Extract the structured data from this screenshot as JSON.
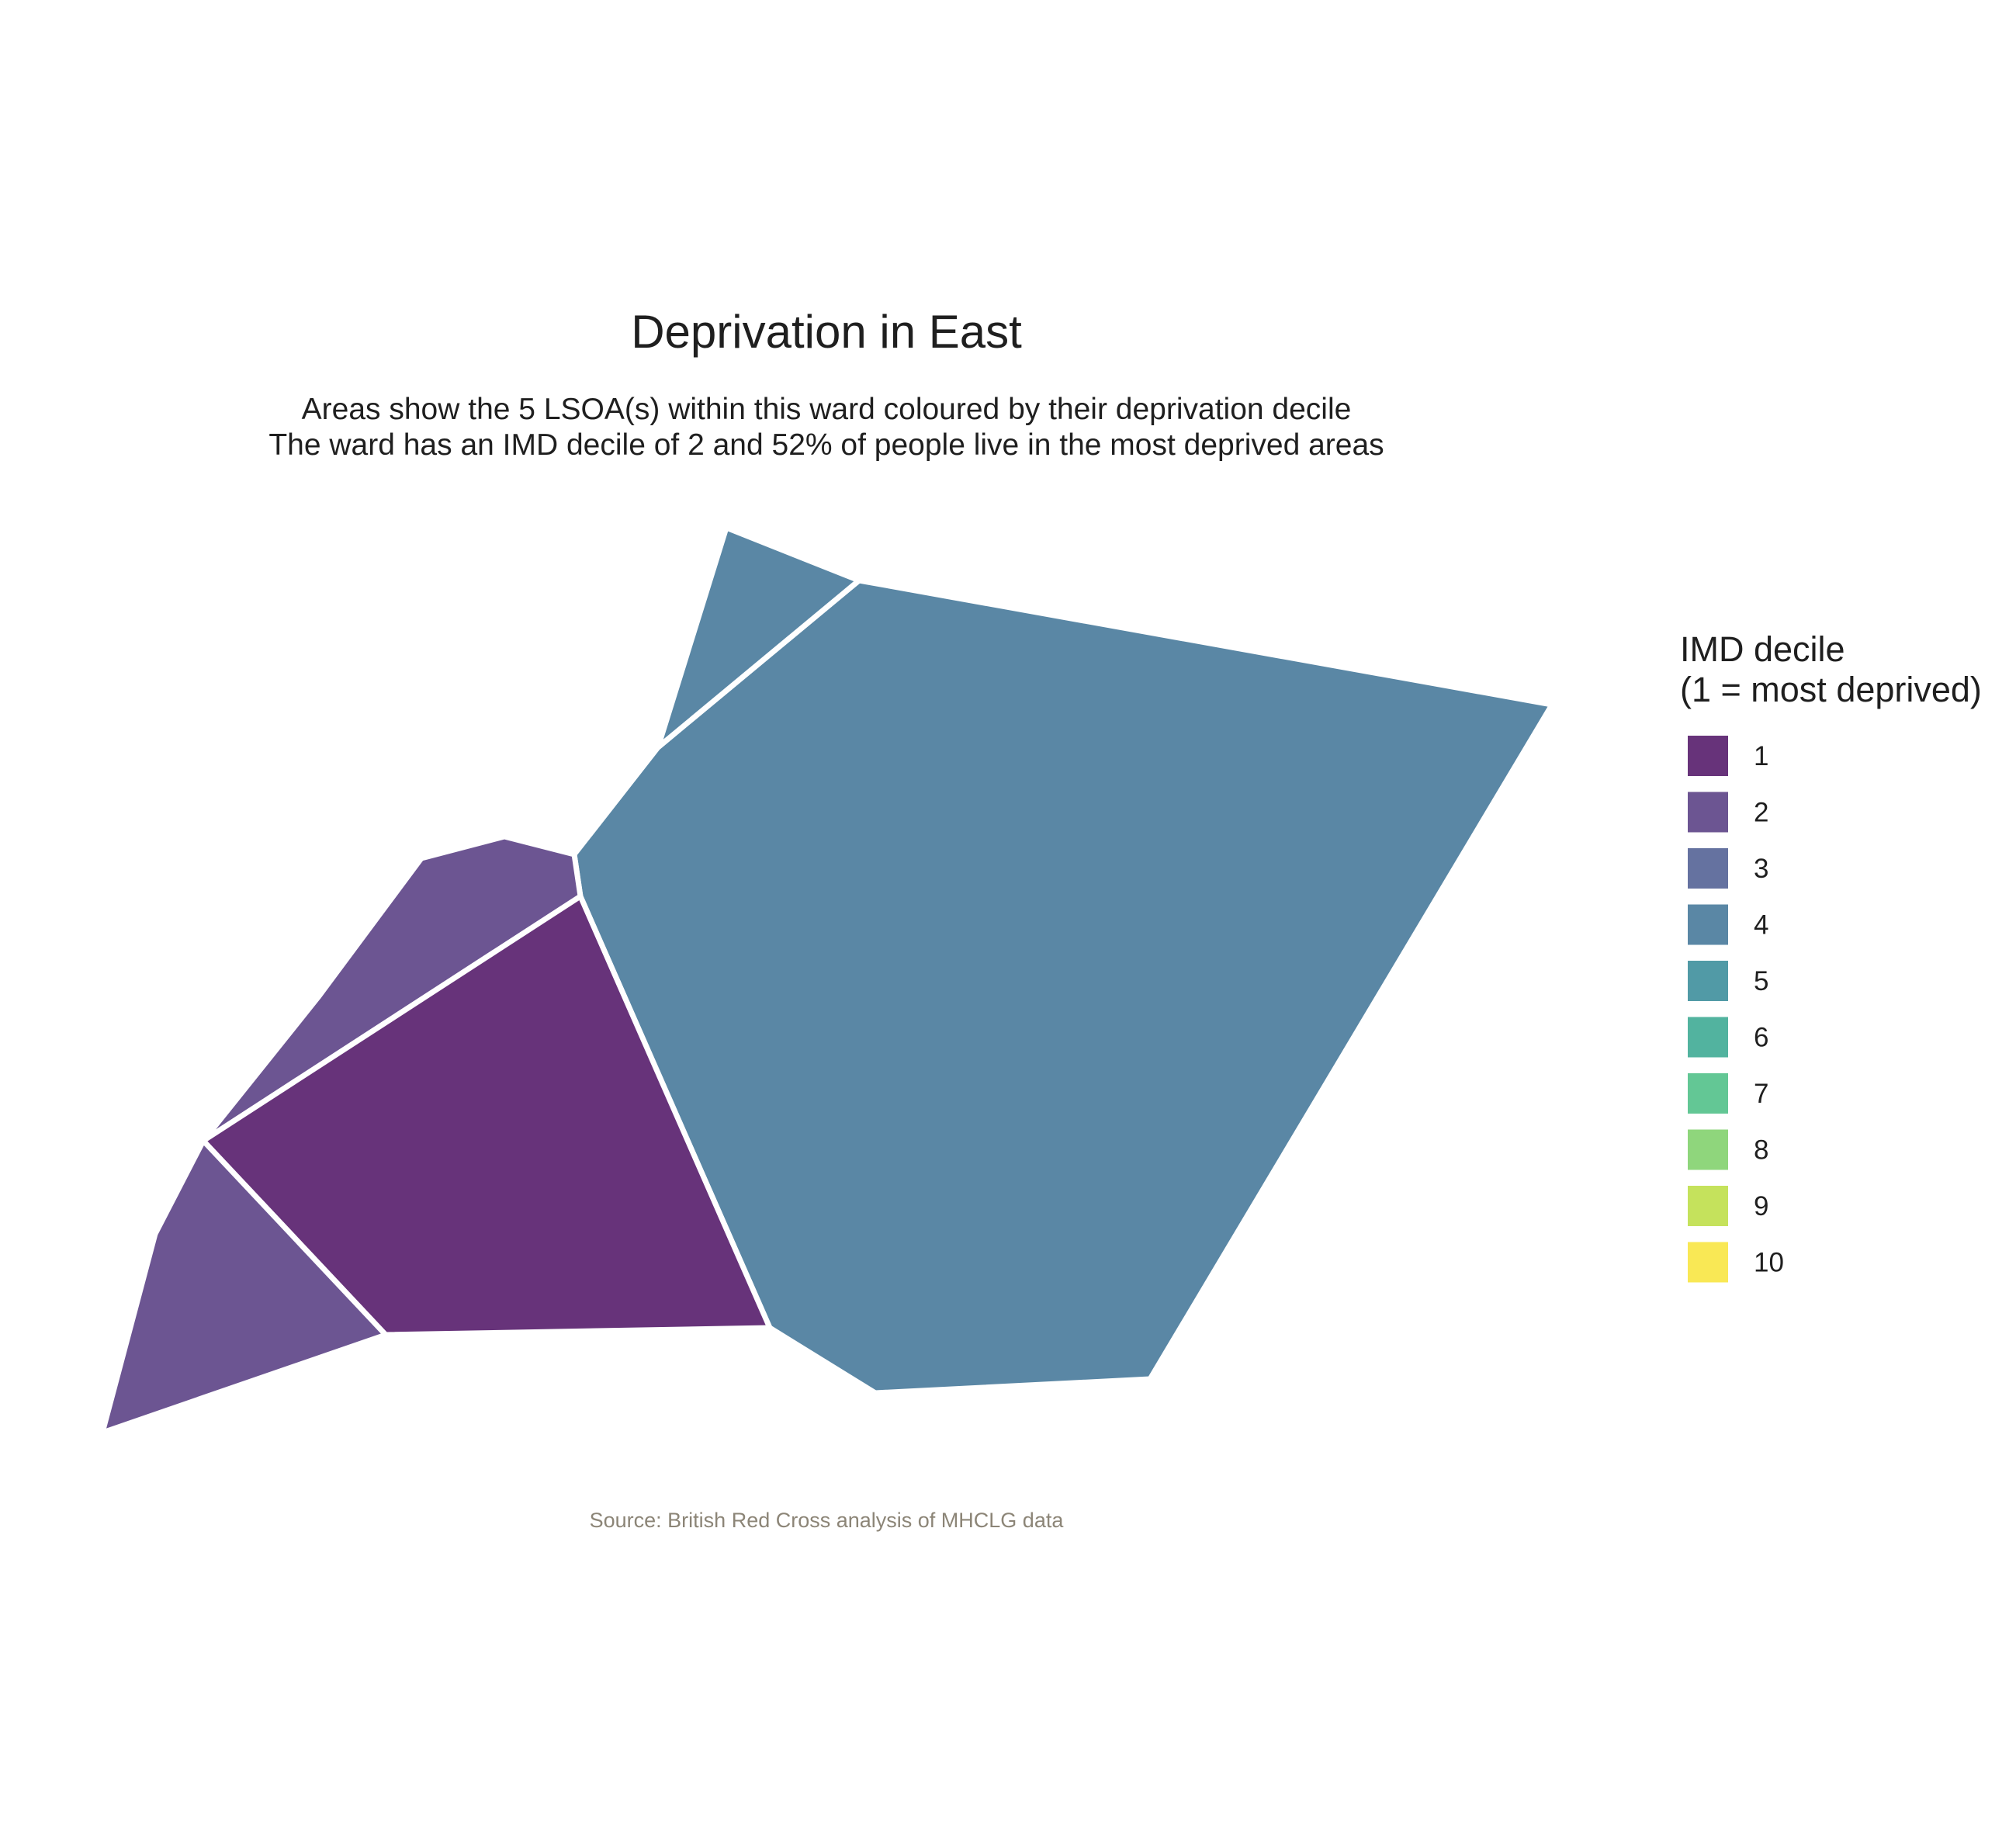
{
  "title": "Deprivation in East",
  "subtitle_lines": [
    "Areas show the 5 LSOA(s) within this ward coloured by their deprivation decile",
    "The ward has an IMD decile of 2 and 52% of people live in the most deprived areas"
  ],
  "caption": "Source: British Red Cross analysis of MHCLG data",
  "legend": {
    "title_lines": [
      "IMD decile",
      "(1 = most deprived)"
    ],
    "items": [
      {
        "label": "1",
        "color": "#67337a"
      },
      {
        "label": "2",
        "color": "#6c5592"
      },
      {
        "label": "3",
        "color": "#6572a0"
      },
      {
        "label": "4",
        "color": "#5a87a5"
      },
      {
        "label": "5",
        "color": "#519aa6"
      },
      {
        "label": "6",
        "color": "#52b39f"
      },
      {
        "label": "7",
        "color": "#63c795"
      },
      {
        "label": "8",
        "color": "#8fd67c"
      },
      {
        "label": "9",
        "color": "#c5e25c"
      },
      {
        "label": "10",
        "color": "#f9e855"
      }
    ]
  },
  "areas": [
    {
      "id": "lsoa-1",
      "decile": 4
    },
    {
      "id": "lsoa-2",
      "decile": 4
    },
    {
      "id": "lsoa-3",
      "decile": 2
    },
    {
      "id": "lsoa-4",
      "decile": 1
    },
    {
      "id": "lsoa-5",
      "decile": 2
    }
  ]
}
